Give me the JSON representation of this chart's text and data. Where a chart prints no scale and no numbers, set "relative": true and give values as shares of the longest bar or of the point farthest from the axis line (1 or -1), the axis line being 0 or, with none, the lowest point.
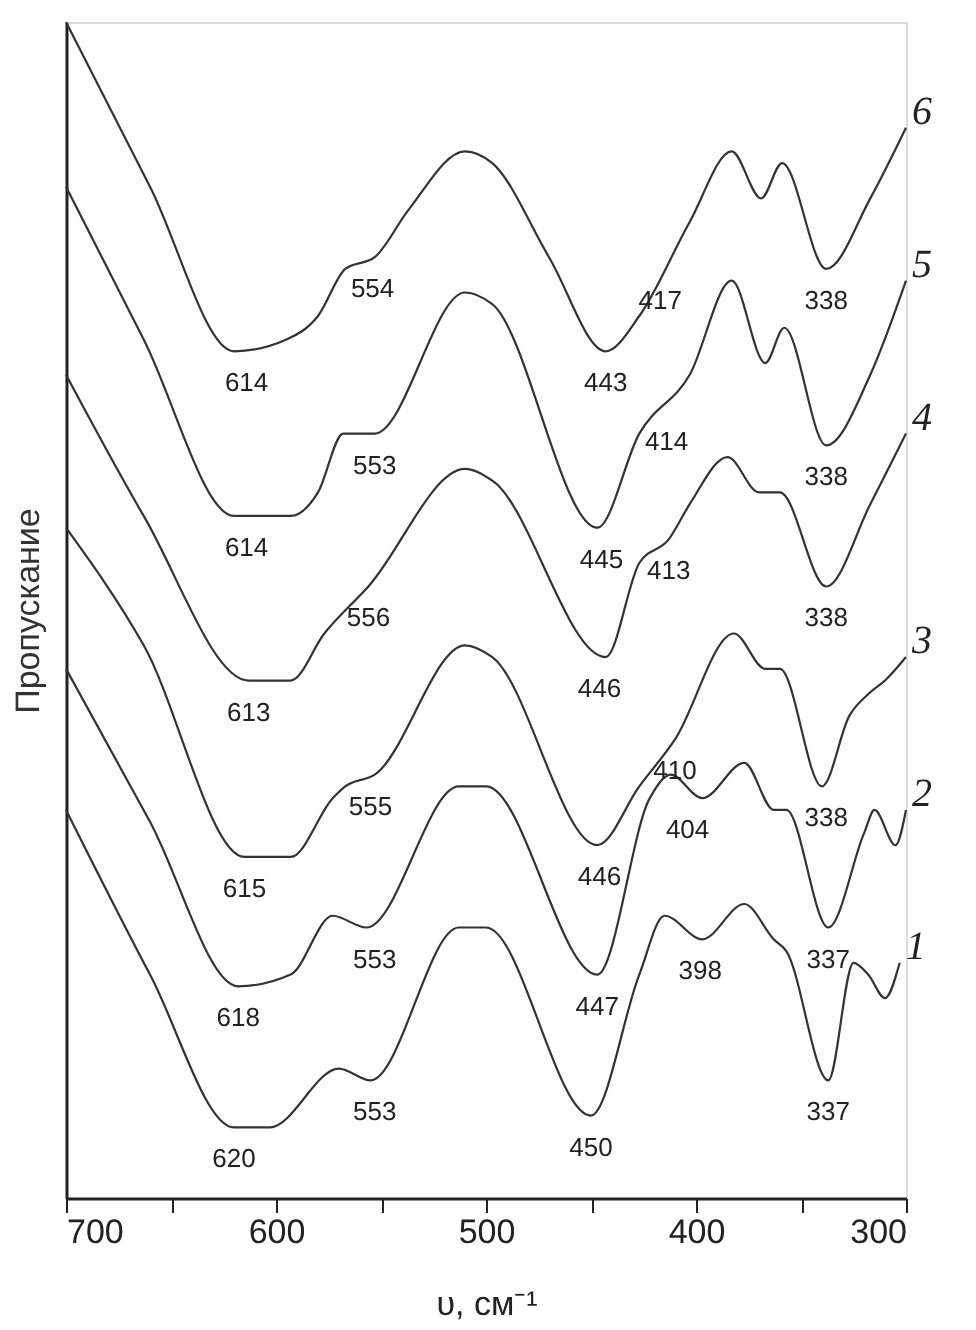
{
  "chart_data": {
    "type": "line",
    "relative": true,
    "xlabel": "υ, см⁻¹",
    "ylabel": "Пропускание",
    "xlim": [
      700,
      300
    ],
    "xticks": [
      700,
      {
        "value": 650,
        "label": null
      },
      600,
      {
        "value": 550,
        "label": null
      },
      500,
      {
        "value": 450,
        "label": null
      },
      400,
      {
        "value": 350,
        "label": null
      },
      300
    ],
    "grid": false,
    "marker": "none",
    "line_style": "solid",
    "series": [
      {
        "name": "1",
        "color": "#333333",
        "x": [
          700,
          660,
          620,
          603,
          570,
          555,
          513,
          500,
          450,
          427,
          415,
          397,
          377,
          363,
          357,
          337,
          325,
          318,
          310,
          303
        ],
        "values": [
          0.33,
          0.19,
          0.06,
          0.06,
          0.11,
          0.1,
          0.23,
          0.23,
          0.07,
          0.19,
          0.24,
          0.22,
          0.25,
          0.22,
          0.21,
          0.1,
          0.2,
          0.19,
          0.17,
          0.2
        ]
      },
      {
        "name": "2",
        "color": "#333333",
        "x": [
          700,
          660,
          618,
          593,
          573,
          557,
          513,
          500,
          447,
          422,
          412,
          397,
          377,
          363,
          357,
          337,
          320,
          315,
          305,
          300
        ],
        "values": [
          0.45,
          0.32,
          0.18,
          0.19,
          0.24,
          0.23,
          0.35,
          0.35,
          0.19,
          0.34,
          0.36,
          0.34,
          0.37,
          0.33,
          0.33,
          0.23,
          0.31,
          0.33,
          0.3,
          0.33
        ]
      },
      {
        "name": "3",
        "color": "#333333",
        "x": [
          700,
          663,
          615,
          593,
          573,
          567,
          553,
          510,
          497,
          447,
          427,
          410,
          382,
          367,
          360,
          340,
          327,
          317,
          310,
          300
        ],
        "values": [
          0.57,
          0.47,
          0.29,
          0.29,
          0.34,
          0.35,
          0.36,
          0.47,
          0.46,
          0.3,
          0.35,
          0.39,
          0.48,
          0.45,
          0.45,
          0.35,
          0.41,
          0.43,
          0.44,
          0.46
        ]
      },
      {
        "name": "4",
        "color": "#333333",
        "x": [
          700,
          663,
          613,
          593,
          577,
          556,
          510,
          497,
          443,
          427,
          413,
          403,
          385,
          370,
          360,
          338,
          317,
          300
        ],
        "values": [
          0.7,
          0.58,
          0.44,
          0.44,
          0.48,
          0.52,
          0.62,
          0.61,
          0.46,
          0.54,
          0.56,
          0.59,
          0.63,
          0.6,
          0.6,
          0.52,
          0.59,
          0.65
        ]
      },
      {
        "name": "5",
        "color": "#333333",
        "x": [
          700,
          663,
          620,
          593,
          580,
          568,
          553,
          510,
          497,
          447,
          427,
          403,
          383,
          367,
          358,
          338,
          317,
          300
        ],
        "values": [
          0.86,
          0.73,
          0.58,
          0.58,
          0.6,
          0.65,
          0.65,
          0.77,
          0.76,
          0.57,
          0.65,
          0.7,
          0.78,
          0.71,
          0.74,
          0.64,
          0.7,
          0.78
        ]
      },
      {
        "name": "6",
        "color": "#333333",
        "x": [
          700,
          660,
          620,
          595,
          580,
          567,
          553,
          537,
          510,
          497,
          470,
          443,
          427,
          403,
          383,
          369,
          359,
          338,
          317,
          300
        ],
        "values": [
          1.0,
          0.86,
          0.72,
          0.73,
          0.75,
          0.79,
          0.8,
          0.84,
          0.89,
          0.88,
          0.8,
          0.72,
          0.75,
          0.83,
          0.89,
          0.85,
          0.88,
          0.79,
          0.85,
          0.91
        ]
      }
    ],
    "annotations": [
      {
        "text": "614",
        "x": 614,
        "y": 0.72
      },
      {
        "text": "554",
        "x": 554,
        "y": 0.8
      },
      {
        "text": "443",
        "x": 443,
        "y": 0.72
      },
      {
        "text": "417",
        "x": 417,
        "y": 0.79
      },
      {
        "text": "338",
        "x": 338,
        "y": 0.79
      },
      {
        "text": "614",
        "x": 614,
        "y": 0.58
      },
      {
        "text": "553",
        "x": 553,
        "y": 0.65
      },
      {
        "text": "445",
        "x": 445,
        "y": 0.57
      },
      {
        "text": "414",
        "x": 414,
        "y": 0.67
      },
      {
        "text": "338",
        "x": 338,
        "y": 0.64
      },
      {
        "text": "613",
        "x": 613,
        "y": 0.44
      },
      {
        "text": "556",
        "x": 556,
        "y": 0.52
      },
      {
        "text": "446",
        "x": 446,
        "y": 0.46
      },
      {
        "text": "413",
        "x": 413,
        "y": 0.56
      },
      {
        "text": "338",
        "x": 338,
        "y": 0.52
      },
      {
        "text": "615",
        "x": 615,
        "y": 0.29
      },
      {
        "text": "555",
        "x": 555,
        "y": 0.36
      },
      {
        "text": "446",
        "x": 446,
        "y": 0.3
      },
      {
        "text": "410",
        "x": 410,
        "y": 0.39
      },
      {
        "text": "338",
        "x": 338,
        "y": 0.35
      },
      {
        "text": "618",
        "x": 618,
        "y": 0.18
      },
      {
        "text": "553",
        "x": 553,
        "y": 0.23
      },
      {
        "text": "447",
        "x": 447,
        "y": 0.19
      },
      {
        "text": "404",
        "x": 404,
        "y": 0.34
      },
      {
        "text": "337",
        "x": 337,
        "y": 0.23
      },
      {
        "text": "620",
        "x": 620,
        "y": 0.06
      },
      {
        "text": "553",
        "x": 553,
        "y": 0.1
      },
      {
        "text": "450",
        "x": 450,
        "y": 0.07
      },
      {
        "text": "398",
        "x": 398,
        "y": 0.22
      },
      {
        "text": "337",
        "x": 337,
        "y": 0.1
      }
    ]
  }
}
